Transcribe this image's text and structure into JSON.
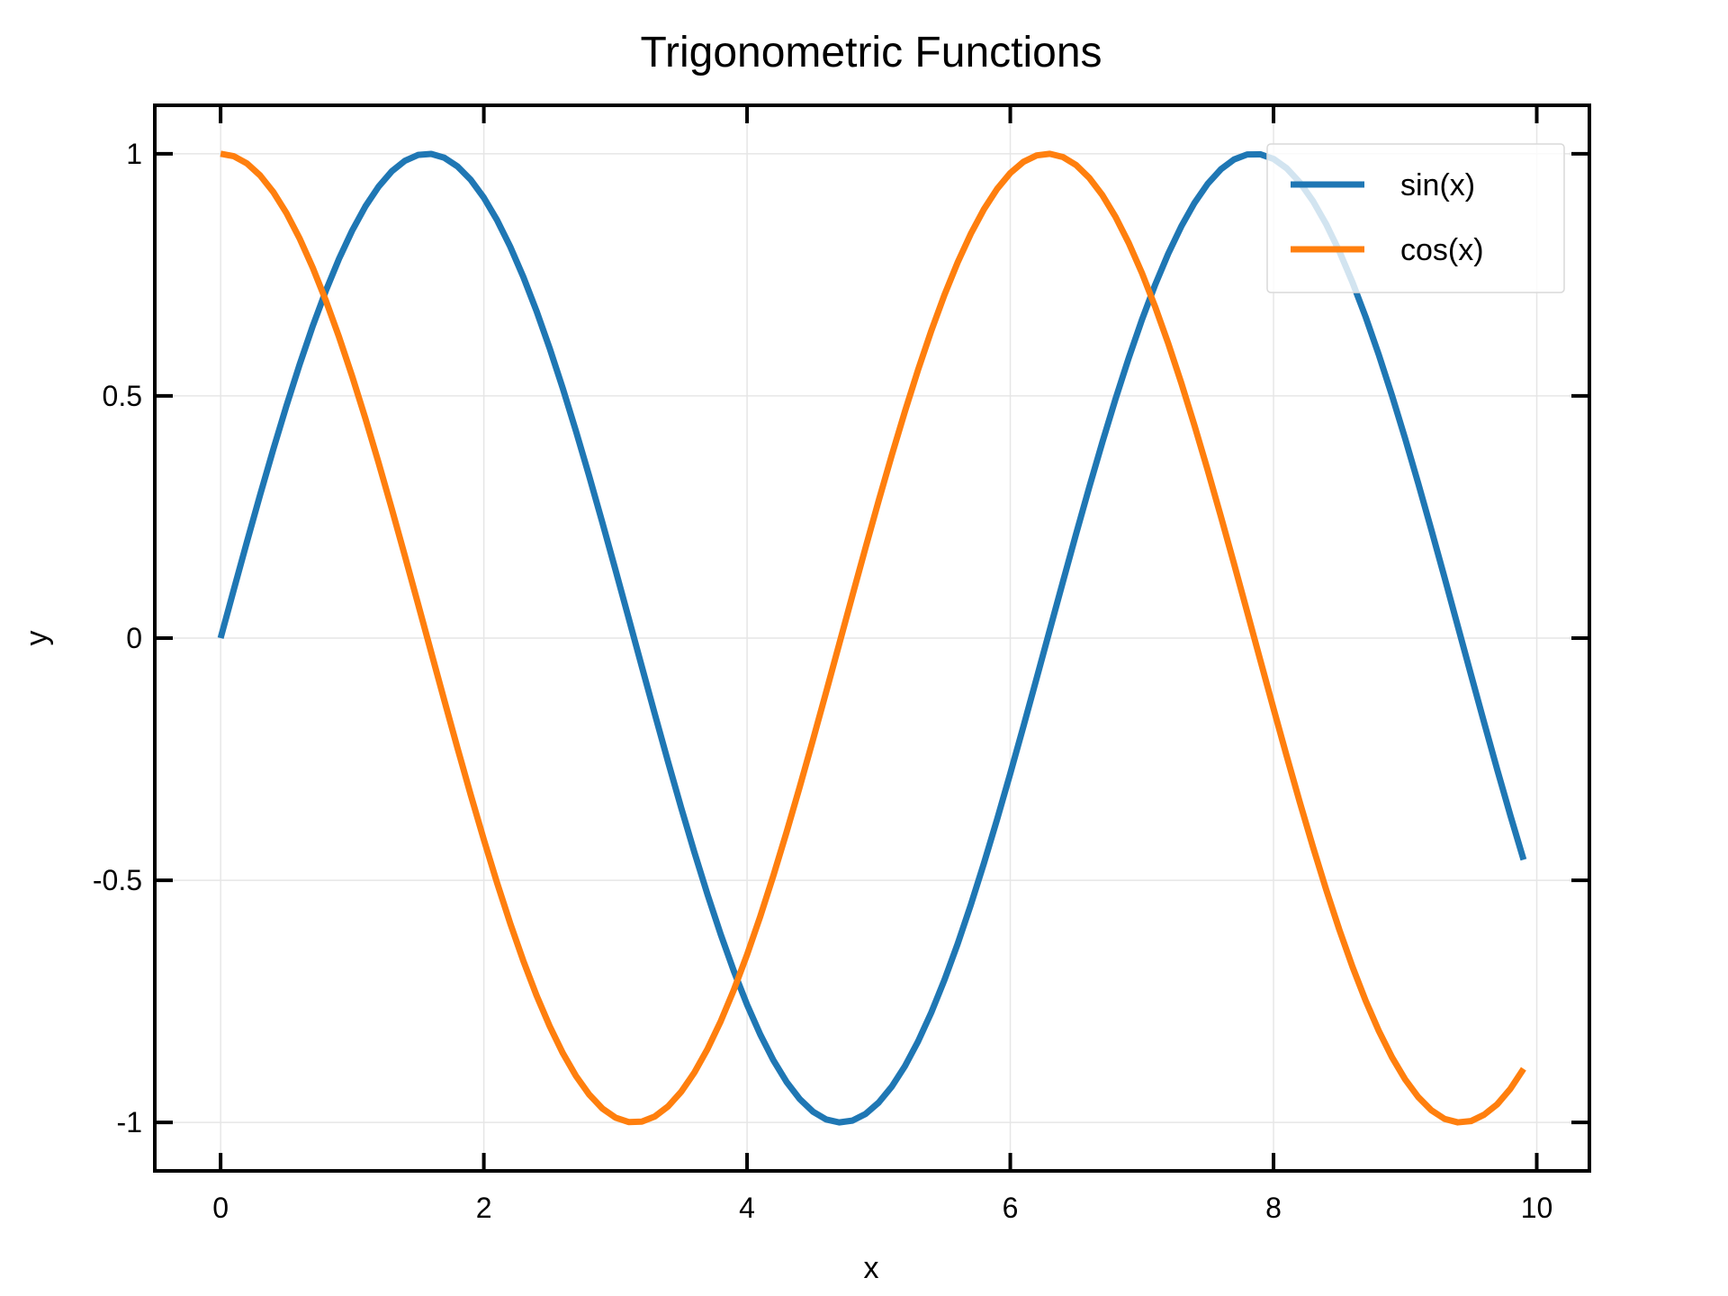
{
  "chart_data": {
    "type": "line",
    "title": "Trigonometric Functions",
    "xlabel": "x",
    "ylabel": "y",
    "xlim": [
      -0.5,
      10.4
    ],
    "ylim": [
      -1.1,
      1.1
    ],
    "xticks": [
      0,
      2,
      4,
      6,
      8,
      10
    ],
    "xtick_labels": [
      "0",
      "2",
      "4",
      "6",
      "8",
      "10"
    ],
    "yticks": [
      -1,
      -0.5,
      0,
      0.5,
      1
    ],
    "ytick_labels": [
      "-1",
      "-0.5",
      "0",
      "0.5",
      "1"
    ],
    "grid": true,
    "legend_position": "top-right",
    "x": [
      0.0,
      0.1,
      0.2,
      0.3,
      0.4,
      0.5,
      0.6,
      0.7,
      0.8,
      0.9,
      1.0,
      1.1,
      1.2,
      1.3,
      1.4,
      1.5,
      1.6,
      1.7,
      1.8,
      1.9,
      2.0,
      2.1,
      2.2,
      2.3,
      2.4,
      2.5,
      2.6,
      2.7,
      2.8,
      2.9,
      3.0,
      3.1,
      3.2,
      3.3,
      3.4,
      3.5,
      3.6,
      3.7,
      3.8,
      3.9,
      4.0,
      4.1,
      4.2,
      4.3,
      4.4,
      4.5,
      4.6,
      4.7,
      4.8,
      4.9,
      5.0,
      5.1,
      5.2,
      5.3,
      5.4,
      5.5,
      5.6,
      5.7,
      5.8,
      5.9,
      6.0,
      6.1,
      6.2,
      6.3,
      6.4,
      6.5,
      6.6,
      6.7,
      6.8,
      6.9,
      7.0,
      7.1,
      7.2,
      7.3,
      7.4,
      7.5,
      7.6,
      7.7,
      7.8,
      7.9,
      8.0,
      8.1,
      8.2,
      8.3,
      8.4,
      8.5,
      8.6,
      8.7,
      8.8,
      8.9,
      9.0,
      9.1,
      9.2,
      9.3,
      9.4,
      9.5,
      9.6,
      9.7,
      9.8,
      9.9
    ],
    "series": [
      {
        "name": "sin(x)",
        "color": "#1f77b4",
        "values": [
          0.0,
          0.0998,
          0.1987,
          0.2955,
          0.3894,
          0.4794,
          0.5646,
          0.6442,
          0.7174,
          0.7833,
          0.8415,
          0.8912,
          0.932,
          0.9636,
          0.9854,
          0.9975,
          0.9996,
          0.9917,
          0.9738,
          0.9463,
          0.9093,
          0.8632,
          0.8085,
          0.7457,
          0.6755,
          0.5985,
          0.5155,
          0.4274,
          0.335,
          0.2392,
          0.1411,
          0.0416,
          -0.0584,
          -0.1577,
          -0.2555,
          -0.3508,
          -0.4425,
          -0.5298,
          -0.6119,
          -0.6878,
          -0.7568,
          -0.8183,
          -0.8716,
          -0.9162,
          -0.9516,
          -0.9775,
          -0.9937,
          -0.9999,
          -0.9962,
          -0.9825,
          -0.9589,
          -0.9258,
          -0.8835,
          -0.8323,
          -0.7728,
          -0.7055,
          -0.6313,
          -0.5507,
          -0.4646,
          -0.3739,
          -0.2794,
          -0.1822,
          -0.0831,
          0.0168,
          0.1165,
          0.2151,
          0.3115,
          0.4048,
          0.4941,
          0.5784,
          0.657,
          0.729,
          0.7937,
          0.8504,
          0.8987,
          0.938,
          0.9679,
          0.9882,
          0.9985,
          0.9989,
          0.9894,
          0.9699,
          0.9407,
          0.9022,
          0.8546,
          0.7985,
          0.7344,
          0.663,
          0.5849,
          0.501,
          0.4121,
          0.319,
          0.2229,
          0.1245,
          0.0248,
          -0.0752,
          -0.1743,
          -0.2718,
          -0.3665,
          -0.4575
        ]
      },
      {
        "name": "cos(x)",
        "color": "#ff7f0e",
        "values": [
          1.0,
          0.995,
          0.9801,
          0.9553,
          0.9211,
          0.8776,
          0.8253,
          0.7648,
          0.6967,
          0.6216,
          0.5403,
          0.4536,
          0.3624,
          0.2675,
          0.17,
          0.0707,
          -0.0292,
          -0.1288,
          -0.2272,
          -0.3233,
          -0.4161,
          -0.5048,
          -0.5885,
          -0.6663,
          -0.7374,
          -0.8011,
          -0.8569,
          -0.904,
          -0.9422,
          -0.971,
          -0.99,
          -0.9991,
          -0.9983,
          -0.9875,
          -0.9668,
          -0.9365,
          -0.8968,
          -0.8481,
          -0.791,
          -0.7259,
          -0.6536,
          -0.5748,
          -0.4903,
          -0.4008,
          -0.3073,
          -0.2108,
          -0.1122,
          -0.0124,
          0.0875,
          0.1865,
          0.2837,
          0.378,
          0.4685,
          0.5544,
          0.6347,
          0.7087,
          0.7756,
          0.8347,
          0.8855,
          0.9275,
          0.9602,
          0.9833,
          0.9965,
          0.9999,
          0.9932,
          0.9766,
          0.9502,
          0.9144,
          0.8694,
          0.8157,
          0.7539,
          0.6845,
          0.6084,
          0.5261,
          0.4385,
          0.3466,
          0.2512,
          0.1534,
          0.054,
          -0.046,
          -0.1455,
          -0.2435,
          -0.3392,
          -0.4314,
          -0.5193,
          -0.602,
          -0.6787,
          -0.7486,
          -0.811,
          -0.8653,
          -0.9111,
          -0.9477,
          -0.975,
          -0.9927,
          -0.9998,
          -0.9972,
          -0.984,
          -0.9624,
          -0.9304,
          -0.8893
        ]
      }
    ]
  }
}
